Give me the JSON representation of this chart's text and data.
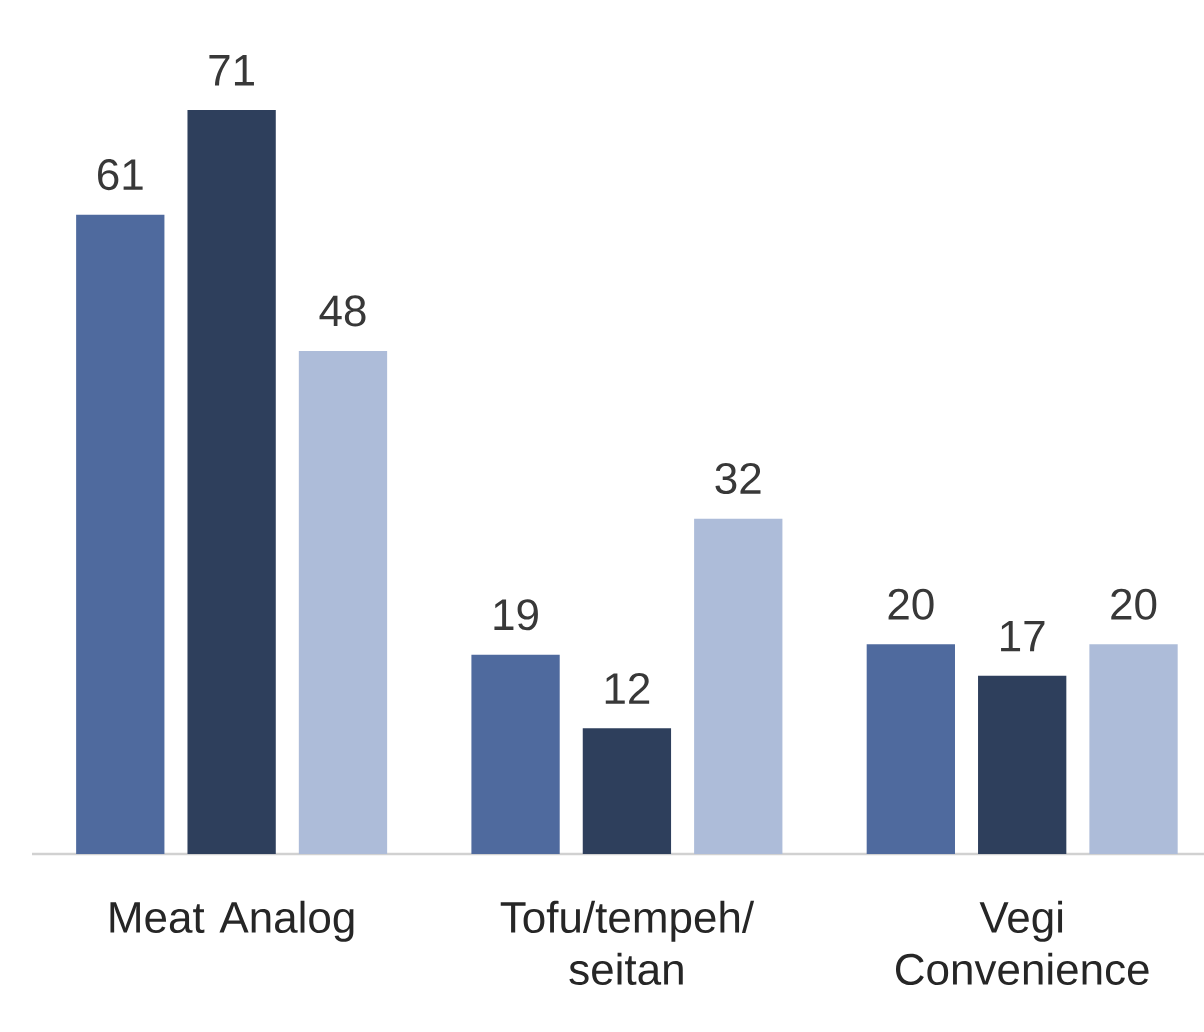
{
  "chart_data": {
    "type": "bar",
    "categories": [
      "Meat Analog",
      "Tofu/tempeh/ seitan",
      "Vegi Convenience"
    ],
    "series": [
      {
        "color": "#4f6a9e",
        "values": [
          61,
          19,
          20
        ]
      },
      {
        "color": "#2e3f5c",
        "values": [
          71,
          12,
          17
        ]
      },
      {
        "color": "#adbcd9",
        "values": [
          48,
          32,
          20
        ]
      }
    ],
    "data_labels": true
  }
}
